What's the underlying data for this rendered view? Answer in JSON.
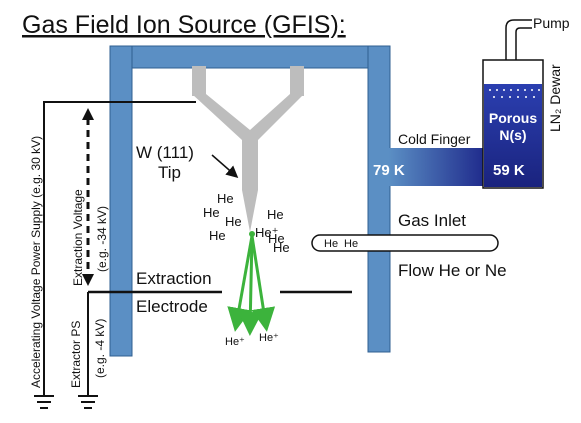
{
  "title": "Gas Field Ion Source (GFIS):",
  "labels": {
    "pump": "Pump",
    "dewar": "LN₂ Dewar",
    "porous_1": "Porous",
    "porous_2": "N(s)",
    "cold_finger": "Cold Finger",
    "temp_left": "79 K",
    "temp_right": "59 K",
    "tip_1": "W (111)",
    "tip_2": "Tip",
    "gas_inlet": "Gas Inlet",
    "flow": "Flow He or Ne",
    "extraction_1": "Extraction",
    "extraction_2": "Electrode",
    "accel_supply": "Accelerating Voltage Power Supply (e.g. 30 kV)",
    "extraction_voltage_1": "Extraction Voltage",
    "extraction_voltage_2": "(e.g. -34 kV)",
    "extractor_ps_1": "Extractor PS",
    "extractor_ps_2": "(e.g. -4 kV)",
    "he_ion": "He⁺",
    "he_tip_ion": "He⁺",
    "he_atoms": [
      "He",
      "He",
      "He",
      "He",
      "He",
      "He",
      "He"
    ],
    "inlet_atoms": [
      "He",
      "He"
    ]
  },
  "colors": {
    "chamber": "#5b8fc4",
    "chamber_edge": "#2f5f91",
    "tip": "#bdbdbd",
    "dewar_fill": "#1f2a8c",
    "ion_beam": "#3cb33c"
  }
}
